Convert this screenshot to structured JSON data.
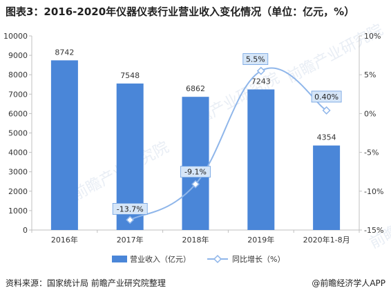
{
  "title": "图表3：2016-2020年仪器仪表行业营业收入变化情况（单位：亿元，%）",
  "source": "资料来源：国家统计局 前瞻产业研究院整理",
  "brand": "@前瞻经济学人APP",
  "watermark": "前瞻产业研究院",
  "colors": {
    "bar": "#4a86d8",
    "line": "#8fb6ea",
    "label_box": "#d6e6f8",
    "label_border": "#6b9ee0"
  },
  "chart_data": {
    "type": "bar",
    "categories": [
      "2016年",
      "2017年",
      "2018年",
      "2019年",
      "2020年1-8月"
    ],
    "series": [
      {
        "name": "营业收入（亿元）",
        "type": "bar",
        "axis": "left",
        "values": [
          8742,
          7548,
          6862,
          7243,
          4354
        ],
        "labels": [
          "8742",
          "7548",
          "6862",
          "7243",
          "4354"
        ]
      },
      {
        "name": "同比增长（%）",
        "type": "line",
        "axis": "right",
        "values": [
          null,
          -13.7,
          -9.1,
          5.5,
          0.4
        ],
        "labels": [
          "",
          "-13.7%",
          "-9.1%",
          "5.5%",
          "0.40%"
        ]
      }
    ],
    "y_left": {
      "min": 0,
      "max": 10000,
      "ticks": [
        "0",
        "1000",
        "2000",
        "3000",
        "4000",
        "5000",
        "6000",
        "7000",
        "8000",
        "9000",
        "10000"
      ]
    },
    "y_right": {
      "min": -15,
      "max": 10,
      "ticks": [
        "-15%",
        "-10%",
        "-5%",
        "0%",
        "5%",
        "10%"
      ]
    },
    "legend": {
      "position": "bottom",
      "bar_label": "营业收入（亿元）",
      "line_label": "同比增长（%）"
    },
    "grid": false
  }
}
